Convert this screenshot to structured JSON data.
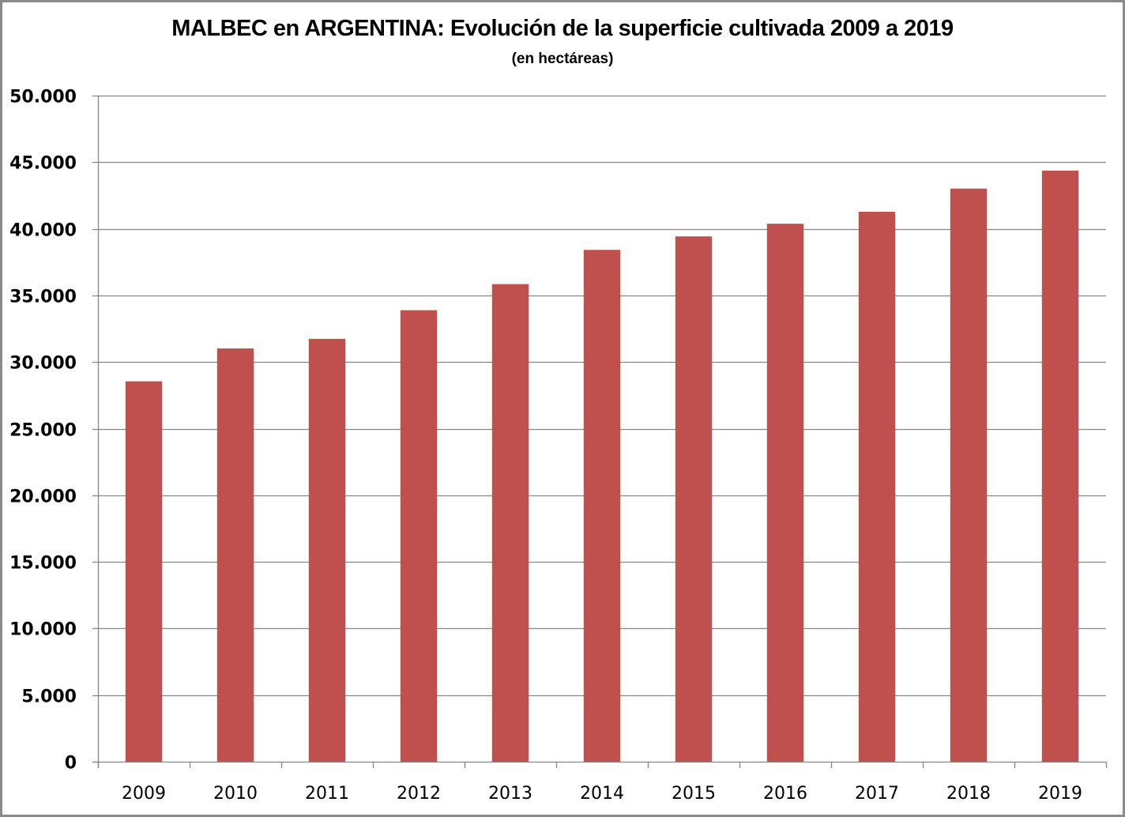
{
  "chart_data": {
    "type": "bar",
    "title": "MALBEC en ARGENTINA: Evolución de la superficie cultivada 2009 a 2019",
    "subtitle": "(en hectáreas)",
    "xlabel": "",
    "ylabel": "",
    "categories": [
      "2009",
      "2010",
      "2011",
      "2012",
      "2013",
      "2014",
      "2015",
      "2016",
      "2017",
      "2018",
      "2019"
    ],
    "values": [
      28550,
      31020,
      31740,
      33890,
      35850,
      38420,
      39430,
      40380,
      41280,
      43020,
      44370
    ],
    "ylim": [
      0,
      50000
    ],
    "yticks": [
      0,
      5000,
      10000,
      15000,
      20000,
      25000,
      30000,
      35000,
      40000,
      45000,
      50000
    ],
    "ytick_labels": [
      "0",
      "5.000",
      "10.000",
      "15.000",
      "20.000",
      "25.000",
      "30.000",
      "35.000",
      "40.000",
      "45.000",
      "50.000"
    ],
    "grid": true,
    "legend": "none",
    "bar_color": "#c0504d",
    "grid_color": "#868686"
  }
}
